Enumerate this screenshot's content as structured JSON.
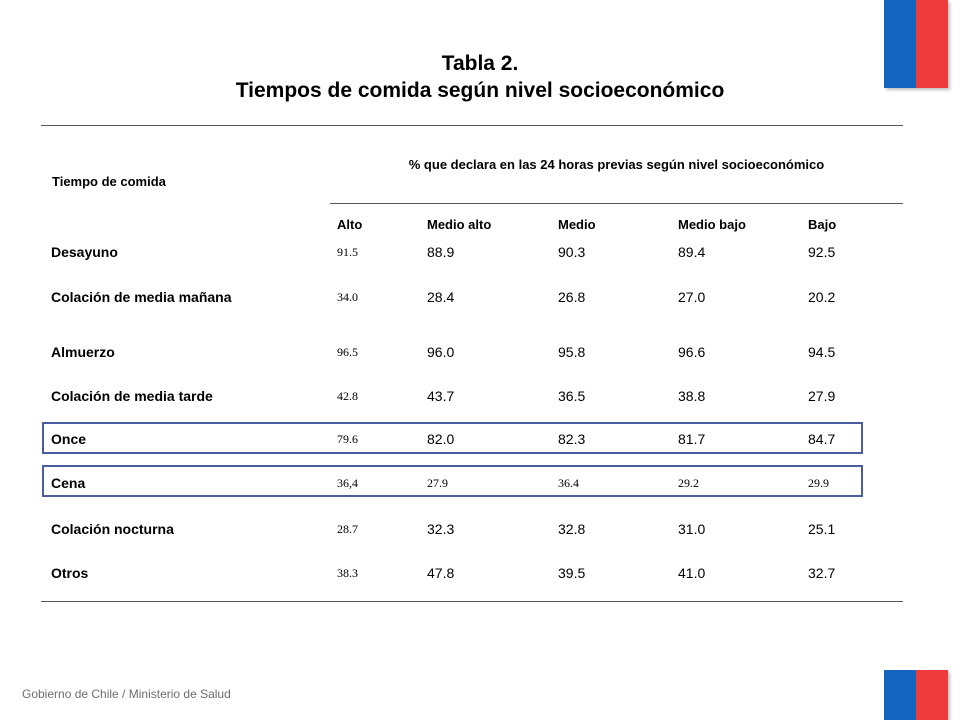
{
  "title": {
    "line1": "Tabla 2.",
    "line2": "Tiempos de comida según nivel socioeconómico"
  },
  "table": {
    "row_header": "Tiempo de comida",
    "group_header": "% que declara en las 24 horas previas según nivel socioeconómico",
    "columns": [
      "Alto",
      "Medio alto",
      "Medio",
      "Medio bajo",
      "Bajo"
    ],
    "rows": [
      {
        "label": "Desayuno",
        "values": [
          "91.5",
          "88.9",
          "90.3",
          "89.4",
          "92.5"
        ]
      },
      {
        "label": "Colación de media mañana",
        "values": [
          "34.0",
          "28.4",
          "26.8",
          "27.0",
          "20.2"
        ]
      },
      {
        "label": "Almuerzo",
        "values": [
          "96.5",
          "96.0",
          "95.8",
          "96.6",
          "94.5"
        ]
      },
      {
        "label": "Colación de media tarde",
        "values": [
          "42.8",
          "43.7",
          "36.5",
          "38.8",
          "27.9"
        ]
      },
      {
        "label": "Once",
        "values": [
          "79.6",
          "82.0",
          "82.3",
          "81.7",
          "84.7"
        ]
      },
      {
        "label": "Cena",
        "values": [
          "36,4",
          "27.9",
          "36.4",
          "29.2",
          "29.9"
        ]
      },
      {
        "label": "Colación nocturna",
        "values": [
          "28.7",
          "32.3",
          "32.8",
          "31.0",
          "25.1"
        ]
      },
      {
        "label": "Otros",
        "values": [
          "38.3",
          "47.8",
          "39.5",
          "41.0",
          "32.7"
        ]
      }
    ]
  },
  "footer": "Gobierno de Chile / Ministerio de Salud",
  "colors": {
    "flag_blue": "#1565c0",
    "flag_red": "#ee3b3b",
    "highlight_border": "#4a5da0"
  }
}
